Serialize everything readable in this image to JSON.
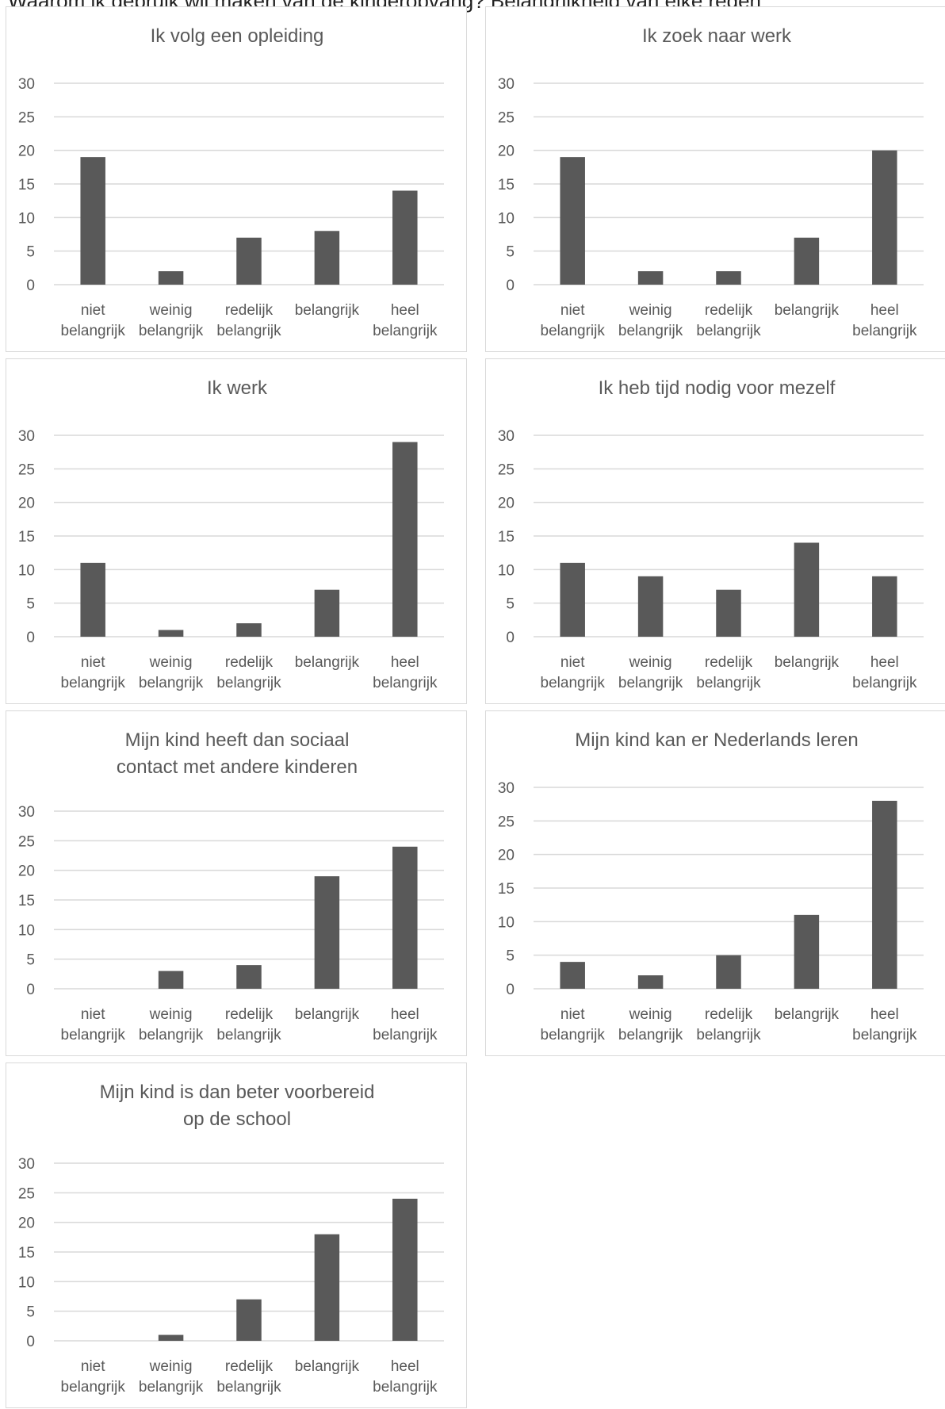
{
  "page": {
    "title": "Waarom ik gebruik wil maken van de kinderopvang? Belangrijkheid van elke reden"
  },
  "colors": {
    "bar": "#595959",
    "grid": "#d9d9d9",
    "text": "#595959",
    "border": "#d9d9d9"
  },
  "chart_data": [
    {
      "type": "bar",
      "title": "Ik volg een opleiding",
      "categories": [
        "niet belangrijk",
        "weinig belangrijk",
        "redelijk belangrijk",
        "belangrijk",
        "heel belangrijk"
      ],
      "values": [
        19,
        2,
        7,
        8,
        14
      ],
      "ylim": [
        0,
        30
      ],
      "yticks": [
        0,
        5,
        10,
        15,
        20,
        25,
        30
      ],
      "grid": true,
      "legend": "none",
      "xlabel": "",
      "ylabel": ""
    },
    {
      "type": "bar",
      "title": "Ik zoek naar werk",
      "categories": [
        "niet belangrijk",
        "weinig belangrijk",
        "redelijk belangrijk",
        "belangrijk",
        "heel belangrijk"
      ],
      "values": [
        19,
        2,
        2,
        7,
        20
      ],
      "ylim": [
        0,
        30
      ],
      "yticks": [
        0,
        5,
        10,
        15,
        20,
        25,
        30
      ],
      "grid": true,
      "legend": "none",
      "xlabel": "",
      "ylabel": ""
    },
    {
      "type": "bar",
      "title": "Ik werk",
      "categories": [
        "niet belangrijk",
        "weinig belangrijk",
        "redelijk belangrijk",
        "belangrijk",
        "heel belangrijk"
      ],
      "values": [
        11,
        1,
        2,
        7,
        29
      ],
      "ylim": [
        0,
        30
      ],
      "yticks": [
        0,
        5,
        10,
        15,
        20,
        25,
        30
      ],
      "grid": true,
      "legend": "none",
      "xlabel": "",
      "ylabel": ""
    },
    {
      "type": "bar",
      "title": "Ik heb tijd nodig voor mezelf",
      "categories": [
        "niet belangrijk",
        "weinig belangrijk",
        "redelijk belangrijk",
        "belangrijk",
        "heel belangrijk"
      ],
      "values": [
        11,
        9,
        7,
        14,
        9
      ],
      "ylim": [
        0,
        30
      ],
      "yticks": [
        0,
        5,
        10,
        15,
        20,
        25,
        30
      ],
      "grid": true,
      "legend": "none",
      "xlabel": "",
      "ylabel": ""
    },
    {
      "type": "bar",
      "title": "Mijn kind heeft dan sociaal contact met andere kinderen",
      "categories": [
        "niet belangrijk",
        "weinig belangrijk",
        "redelijk belangrijk",
        "belangrijk",
        "heel belangrijk"
      ],
      "values": [
        0,
        3,
        4,
        19,
        24
      ],
      "ylim": [
        0,
        30
      ],
      "yticks": [
        0,
        5,
        10,
        15,
        20,
        25,
        30
      ],
      "grid": true,
      "legend": "none",
      "xlabel": "",
      "ylabel": ""
    },
    {
      "type": "bar",
      "title": "Mijn kind kan er Nederlands leren",
      "categories": [
        "niet belangrijk",
        "weinig belangrijk",
        "redelijk belangrijk",
        "belangrijk",
        "heel belangrijk"
      ],
      "values": [
        4,
        2,
        5,
        11,
        28
      ],
      "ylim": [
        0,
        30
      ],
      "yticks": [
        0,
        5,
        10,
        15,
        20,
        25,
        30
      ],
      "grid": true,
      "legend": "none",
      "xlabel": "",
      "ylabel": ""
    },
    {
      "type": "bar",
      "title": "Mijn kind is dan beter voorbereid op de school",
      "categories": [
        "niet belangrijk",
        "weinig belangrijk",
        "redelijk belangrijk",
        "belangrijk",
        "heel belangrijk"
      ],
      "values": [
        0,
        1,
        7,
        18,
        24
      ],
      "ylim": [
        0,
        30
      ],
      "yticks": [
        0,
        5,
        10,
        15,
        20,
        25,
        30
      ],
      "grid": true,
      "legend": "none",
      "xlabel": "",
      "ylabel": ""
    }
  ]
}
